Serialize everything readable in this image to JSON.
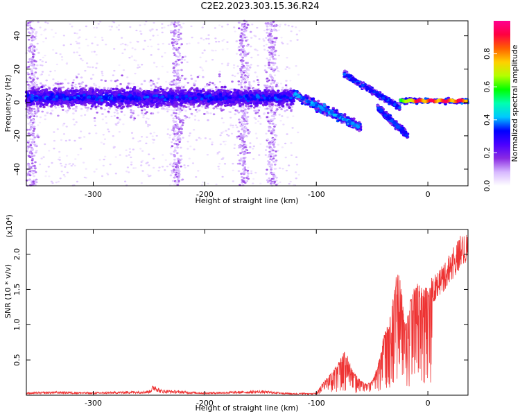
{
  "title": "C2E2.2023.303.15.36.R24",
  "chart_data": [
    {
      "type": "heatmap",
      "xlabel": "Height of straight line (km)",
      "ylabel": "Frequency (Hz)",
      "xlim": [
        -360,
        36
      ],
      "ylim": [
        -50,
        49
      ],
      "xticks": [
        -300,
        -200,
        -100,
        0
      ],
      "yticks": [
        -40,
        -20,
        0,
        20,
        40
      ],
      "colorbar": {
        "label": "Normalized spectral amplitude",
        "range": [
          0,
          1
        ],
        "ticks": [
          0.0,
          0.2,
          0.4,
          0.6,
          0.8
        ],
        "colors": [
          "#ffffff",
          "#d7b8ff",
          "#8a2be2",
          "#4b00ff",
          "#0000ff",
          "#00c8ff",
          "#00ffb0",
          "#00ff00",
          "#b4ff00",
          "#ffd000",
          "#ff6000",
          "#ff0040",
          "#ff0090"
        ]
      },
      "features": [
        {
          "name": "main band",
          "x": [
            -360,
            -120
          ],
          "freq_center": 3,
          "freq_halfwidth": 7,
          "peak_amplitude": 0.3
        },
        {
          "name": "main band tail",
          "x": [
            -120,
            -60
          ],
          "freq_start": 5,
          "freq_end": -15,
          "peak_amplitude": 0.35
        },
        {
          "name": "upper branch",
          "x": [
            -75,
            -25
          ],
          "freq_start": 17,
          "freq_end": -3,
          "peak_amplitude": 0.3
        },
        {
          "name": "lower branch",
          "x": [
            -45,
            -18
          ],
          "freq_start": -3,
          "freq_end": -20,
          "peak_amplitude": 0.3
        },
        {
          "name": "strong tail",
          "x": [
            -25,
            36
          ],
          "freq_center": 1,
          "peak_amplitude": 0.95
        },
        {
          "name": "faint columns",
          "x_centers": [
            -355,
            -225,
            -165,
            -140
          ],
          "freq_range": [
            -50,
            49
          ],
          "peak_amplitude": 0.08
        }
      ]
    },
    {
      "type": "line",
      "xlabel": "Height of straight line (km)",
      "ylabel": "SNR (10 * v/v)",
      "multiplier": "(x10⁴)",
      "xlim": [
        -360,
        36
      ],
      "ylim": [
        0,
        2.35
      ],
      "xticks": [
        -300,
        -200,
        -100,
        0
      ],
      "yticks": [
        0.5,
        1.0,
        1.5,
        2.0
      ],
      "color": "#ee3333",
      "series": [
        {
          "x": [
            -360,
            -330,
            -300,
            -250,
            -245,
            -240,
            -200,
            -150,
            -120,
            -100,
            -95,
            -90,
            -85,
            -80,
            -75,
            -72,
            -68,
            -60,
            -55,
            -50,
            -45,
            -42,
            -40,
            -35,
            -32,
            -30,
            -27,
            -25,
            -22,
            -20,
            -15,
            -10,
            -5,
            0,
            5,
            10,
            15,
            20,
            25,
            30,
            36
          ],
          "values": [
            0.03,
            0.04,
            0.03,
            0.05,
            0.12,
            0.06,
            0.03,
            0.05,
            0.02,
            0.03,
            0.15,
            0.25,
            0.35,
            0.45,
            0.6,
            0.55,
            0.35,
            0.2,
            0.15,
            0.2,
            0.4,
            0.6,
            0.8,
            1.0,
            1.3,
            1.55,
            1.75,
            1.6,
            1.2,
            1.0,
            1.35,
            1.55,
            1.45,
            1.5,
            1.65,
            1.75,
            1.85,
            2.0,
            2.1,
            2.25,
            2.3
          ]
        }
      ]
    }
  ]
}
